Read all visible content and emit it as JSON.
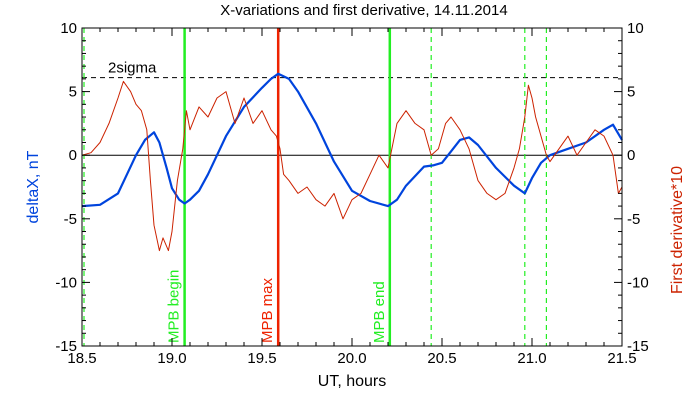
{
  "chart_data": {
    "type": "line",
    "title": "X-variations and first derivative, 14.11.2014",
    "xlabel": "UT, hours",
    "ylabel": "deltaX, nT",
    "y2label": "First derivative*10",
    "xlim": [
      18.5,
      21.5
    ],
    "ylim": [
      -15,
      10
    ],
    "y2lim": [
      -15,
      10
    ],
    "x_ticks": [
      "18.5",
      "19.0",
      "19.5",
      "20.0",
      "20.5",
      "21.0",
      "21.5"
    ],
    "y_ticks": [
      "10",
      "5",
      "0",
      "-5",
      "-10",
      "-15"
    ],
    "y2_ticks": [
      "10",
      "5",
      "0",
      "-5",
      "-10",
      "-15"
    ],
    "zero_line": 0,
    "sigma_line": {
      "label": "2sigma",
      "value": 6.1
    },
    "colors": {
      "deltaX": "#0044dd",
      "derivative": "#cc2200",
      "mpb": "#22ee22",
      "max": "#ee2200"
    },
    "markers": [
      {
        "label": "MPB begin",
        "x": 19.07,
        "color": "#22ee22",
        "style": "solid"
      },
      {
        "label": "MPB max",
        "x": 19.59,
        "color": "#ee2200",
        "style": "solid"
      },
      {
        "label": "MPB end",
        "x": 20.21,
        "color": "#22ee22",
        "style": "solid"
      },
      {
        "label": "",
        "x": 20.44,
        "color": "#22ee22",
        "style": "dashed"
      },
      {
        "label": "",
        "x": 20.96,
        "color": "#22ee22",
        "style": "dashed"
      },
      {
        "label": "",
        "x": 21.08,
        "color": "#22ee22",
        "style": "dashed"
      }
    ],
    "series": [
      {
        "axis": "left",
        "x": [
          18.5,
          18.6,
          18.7,
          18.75,
          18.8,
          18.85,
          18.9,
          18.93,
          18.97,
          19.0,
          19.04,
          19.07,
          19.1,
          19.15,
          19.2,
          19.3,
          19.4,
          19.5,
          19.55,
          19.59,
          19.65,
          19.7,
          19.8,
          19.9,
          20.0,
          20.1,
          20.2,
          20.25,
          20.3,
          20.4,
          20.45,
          20.5,
          20.55,
          20.6,
          20.65,
          20.7,
          20.8,
          20.9,
          20.96,
          21.0,
          21.05,
          21.1,
          21.2,
          21.3,
          21.4,
          21.45,
          21.5
        ],
        "y": [
          -4.0,
          -3.9,
          -3.0,
          -1.5,
          0.0,
          1.2,
          1.8,
          1.0,
          -1.0,
          -2.6,
          -3.5,
          -3.8,
          -3.5,
          -2.8,
          -1.5,
          1.5,
          3.8,
          5.3,
          6.0,
          6.4,
          6.0,
          5.0,
          2.5,
          -0.5,
          -2.8,
          -3.6,
          -4.0,
          -3.5,
          -2.4,
          -0.9,
          -0.8,
          -0.6,
          0.3,
          1.2,
          1.4,
          0.8,
          -1.0,
          -2.4,
          -3.0,
          -1.8,
          -0.6,
          0.0,
          0.5,
          1.0,
          2.0,
          2.4,
          1.2
        ]
      },
      {
        "axis": "right",
        "x": [
          18.5,
          18.55,
          18.6,
          18.65,
          18.7,
          18.73,
          18.77,
          18.8,
          18.83,
          18.86,
          18.88,
          18.9,
          18.93,
          18.95,
          18.98,
          19.0,
          19.03,
          19.06,
          19.08,
          19.1,
          19.15,
          19.2,
          19.25,
          19.3,
          19.35,
          19.4,
          19.45,
          19.5,
          19.55,
          19.58,
          19.6,
          19.62,
          19.65,
          19.7,
          19.75,
          19.8,
          19.85,
          19.9,
          19.95,
          20.0,
          20.05,
          20.1,
          20.15,
          20.2,
          20.25,
          20.3,
          20.35,
          20.4,
          20.44,
          20.48,
          20.52,
          20.55,
          20.6,
          20.65,
          20.7,
          20.75,
          20.8,
          20.85,
          20.9,
          20.93,
          20.96,
          20.98,
          21.0,
          21.02,
          21.05,
          21.08,
          21.1,
          21.15,
          21.2,
          21.25,
          21.3,
          21.35,
          21.4,
          21.45,
          21.48,
          21.5
        ],
        "y": [
          0.0,
          0.2,
          1.0,
          2.5,
          4.5,
          5.8,
          5.0,
          4.0,
          3.5,
          2.0,
          -2.0,
          -5.5,
          -7.5,
          -6.5,
          -7.5,
          -6.0,
          -2.0,
          0.5,
          3.5,
          2.0,
          3.8,
          3.0,
          4.5,
          5.0,
          2.5,
          4.5,
          2.5,
          3.5,
          2.0,
          1.5,
          0.5,
          -1.5,
          -2.0,
          -3.0,
          -2.5,
          -3.5,
          -4.0,
          -3.0,
          -5.0,
          -3.5,
          -3.0,
          -1.5,
          0.0,
          -1.0,
          2.5,
          3.5,
          2.5,
          2.0,
          0.0,
          0.5,
          2.5,
          3.0,
          2.0,
          0.5,
          -2.0,
          -3.0,
          -3.5,
          -3.0,
          -1.0,
          0.5,
          3.0,
          5.5,
          4.5,
          3.0,
          1.5,
          0.0,
          -0.5,
          0.5,
          1.5,
          0.0,
          1.0,
          2.0,
          1.5,
          0.0,
          -3.0,
          -2.5
        ]
      }
    ]
  }
}
